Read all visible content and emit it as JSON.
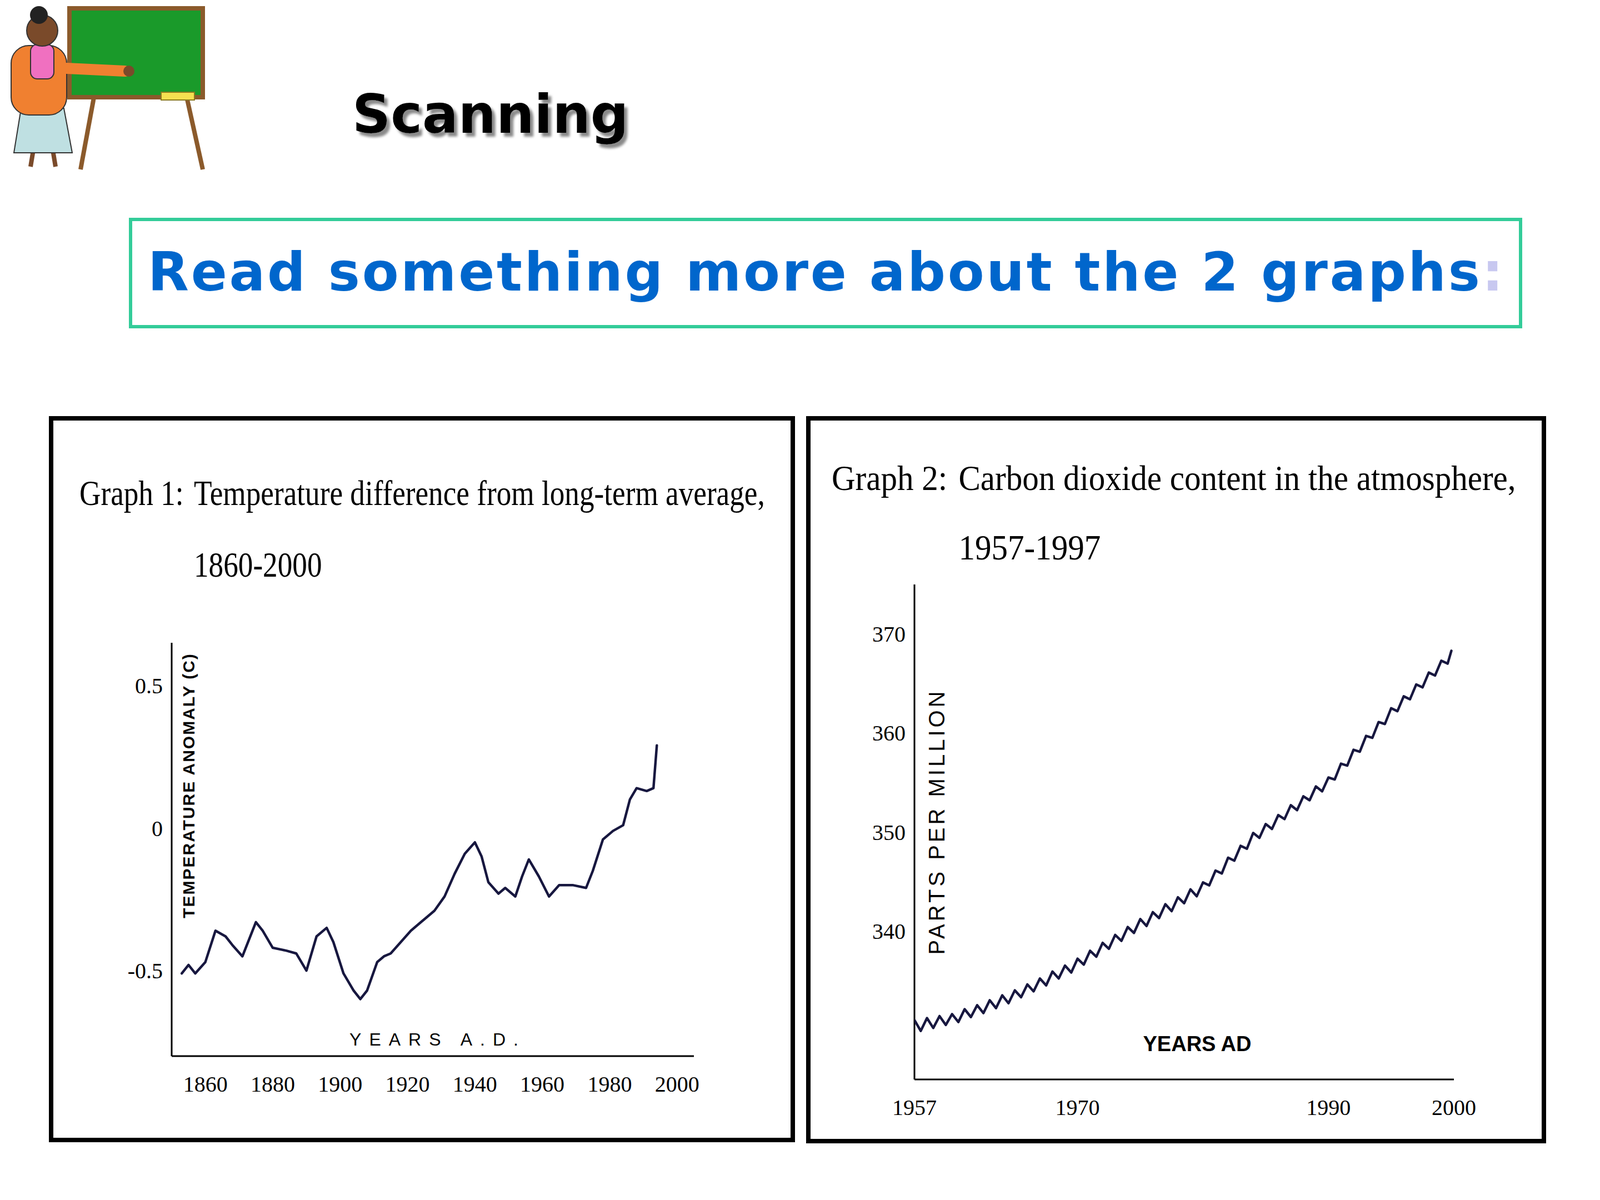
{
  "slide": {
    "title": "Scanning",
    "instruction": "Read something more about the 2 graphs:"
  },
  "chart_data": [
    {
      "type": "line",
      "title": "Graph 1: Temperature difference from long-term average,",
      "subtitle": "1860-2000",
      "x_label": "YEARS A.D.",
      "y_label": "TEMPERATURE ANOMALY (C)",
      "x": [
        1853,
        1855,
        1857,
        1860,
        1863,
        1866,
        1868,
        1871,
        1875,
        1877,
        1880,
        1884,
        1887,
        1890,
        1893,
        1896,
        1898,
        1901,
        1904,
        1906,
        1908,
        1911,
        1913,
        1915,
        1918,
        1921,
        1924,
        1928,
        1931,
        1934,
        1937,
        1940,
        1942,
        1944,
        1947,
        1949,
        1952,
        1954,
        1956,
        1959,
        1962,
        1965,
        1969,
        1973,
        1975,
        1978,
        1981,
        1984,
        1986,
        1988,
        1991,
        1993,
        1994
      ],
      "values": [
        -0.51,
        -0.48,
        -0.51,
        -0.47,
        -0.36,
        -0.38,
        -0.41,
        -0.45,
        -0.33,
        -0.36,
        -0.42,
        -0.43,
        -0.44,
        -0.5,
        -0.38,
        -0.35,
        -0.4,
        -0.51,
        -0.57,
        -0.6,
        -0.57,
        -0.47,
        -0.45,
        -0.44,
        -0.4,
        -0.36,
        -0.33,
        -0.29,
        -0.24,
        -0.16,
        -0.09,
        -0.05,
        -0.1,
        -0.19,
        -0.23,
        -0.21,
        -0.24,
        -0.17,
        -0.11,
        -0.17,
        -0.24,
        -0.2,
        -0.2,
        -0.21,
        -0.15,
        -0.04,
        -0.01,
        0.01,
        0.1,
        0.14,
        0.13,
        0.14,
        0.29
      ],
      "color": "#17173f",
      "xlim": [
        1850,
        2005
      ],
      "xticks": [
        1860,
        1880,
        1900,
        1920,
        1940,
        1960,
        1980,
        2000
      ],
      "ylim": [
        -0.8,
        0.65
      ],
      "yticks": [
        0.5,
        0,
        -0.5
      ],
      "grid": false
    },
    {
      "type": "line",
      "title": "Graph 2: Carbon dioxide content in the atmosphere,",
      "subtitle": "1957-1997",
      "x_label": "YEARS AD",
      "y_label": "PARTS PER MILLION",
      "x": [
        1957,
        1957.5,
        1958,
        1958.5,
        1959,
        1959.5,
        1960,
        1960.5,
        1961,
        1961.5,
        1962,
        1962.5,
        1963,
        1963.5,
        1964,
        1964.5,
        1965,
        1965.5,
        1966,
        1966.5,
        1967,
        1967.5,
        1968,
        1968.5,
        1969,
        1969.5,
        1970,
        1970.5,
        1971,
        1971.5,
        1972,
        1972.5,
        1973,
        1973.5,
        1974,
        1974.5,
        1975,
        1975.5,
        1976,
        1976.5,
        1977,
        1977.5,
        1978,
        1978.5,
        1979,
        1979.5,
        1980,
        1980.5,
        1981,
        1981.5,
        1982,
        1982.5,
        1983,
        1983.5,
        1984,
        1984.5,
        1985,
        1985.5,
        1986,
        1986.5,
        1987,
        1987.5,
        1988,
        1988.5,
        1989,
        1989.5,
        1990,
        1990.5,
        1991,
        1991.5,
        1992,
        1992.5,
        1993,
        1993.5,
        1994,
        1994.5,
        1995,
        1995.5,
        1996,
        1996.5,
        1997,
        1997.5,
        1998,
        1998.5,
        1999,
        1999.5,
        1999.8
      ],
      "values": [
        331.0,
        329.9,
        331.2,
        330.2,
        331.4,
        330.5,
        331.6,
        330.8,
        332.1,
        331.3,
        332.5,
        331.7,
        333.0,
        332.2,
        333.5,
        332.7,
        334.0,
        333.3,
        334.6,
        333.9,
        335.2,
        334.5,
        335.9,
        335.2,
        336.5,
        335.8,
        337.2,
        336.6,
        338.0,
        337.4,
        338.8,
        338.2,
        339.6,
        339.0,
        340.4,
        339.8,
        341.2,
        340.5,
        341.9,
        341.3,
        342.7,
        342.0,
        343.4,
        342.8,
        344.2,
        343.5,
        344.9,
        344.6,
        346.1,
        345.8,
        347.4,
        347.1,
        348.6,
        348.3,
        349.9,
        349.4,
        350.8,
        350.3,
        351.7,
        351.3,
        352.7,
        352.2,
        353.6,
        353.2,
        354.6,
        354.1,
        355.5,
        355.3,
        356.9,
        356.7,
        358.3,
        358.1,
        359.7,
        359.5,
        361.1,
        360.9,
        362.5,
        362.2,
        363.7,
        363.4,
        364.9,
        364.6,
        366.1,
        365.8,
        367.3,
        367.0,
        368.3
      ],
      "color": "#17173f",
      "xlim": [
        1957,
        2000
      ],
      "xticks": [
        1957,
        1970,
        1990,
        2000
      ],
      "ylim": [
        325,
        375
      ],
      "yticks": [
        370,
        360,
        350,
        340
      ],
      "grid": false
    }
  ]
}
